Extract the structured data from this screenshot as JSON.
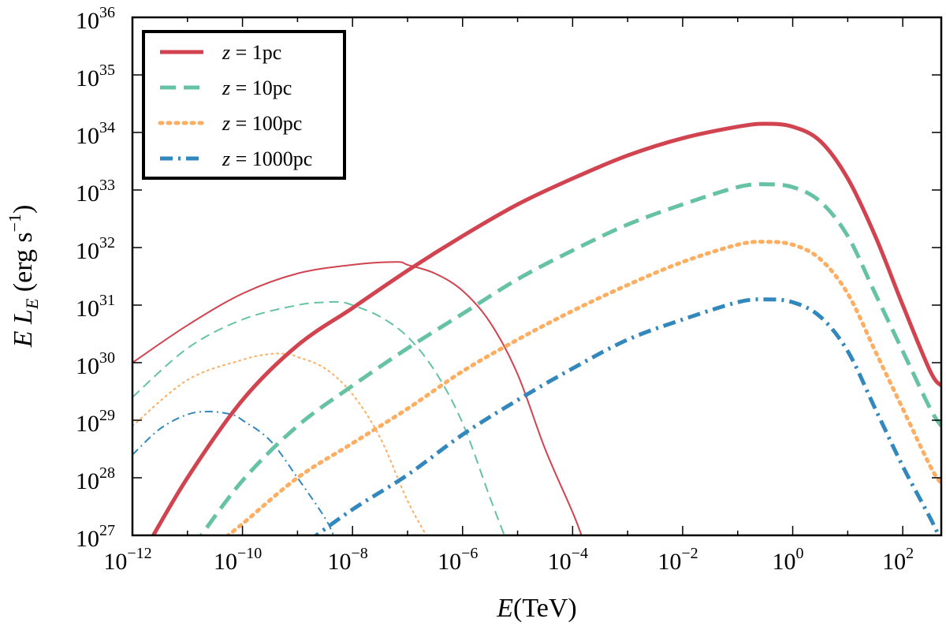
{
  "chart_data": {
    "type": "line",
    "title": "",
    "xlabel": "E(TeV)",
    "ylabel": "E L_E (erg s^-1)",
    "xscale": "log",
    "yscale": "log",
    "xlim_log10": [
      -12,
      2.7
    ],
    "ylim_log10": [
      27,
      36
    ],
    "x_ticks": [
      {
        "base": "10",
        "exp": "-12",
        "log10": -12
      },
      {
        "base": "10",
        "exp": "-10",
        "log10": -10
      },
      {
        "base": "10",
        "exp": "-8",
        "log10": -8
      },
      {
        "base": "10",
        "exp": "-6",
        "log10": -6
      },
      {
        "base": "10",
        "exp": "-4",
        "log10": -4
      },
      {
        "base": "10",
        "exp": "-2",
        "log10": -2
      },
      {
        "base": "10",
        "exp": "0",
        "log10": 0
      },
      {
        "base": "10",
        "exp": "2",
        "log10": 2
      }
    ],
    "y_ticks": [
      {
        "base": "10",
        "exp": "27",
        "log10": 27
      },
      {
        "base": "10",
        "exp": "28",
        "log10": 28
      },
      {
        "base": "10",
        "exp": "29",
        "log10": 29
      },
      {
        "base": "10",
        "exp": "30",
        "log10": 30
      },
      {
        "base": "10",
        "exp": "31",
        "log10": 31
      },
      {
        "base": "10",
        "exp": "32",
        "log10": 32
      },
      {
        "base": "10",
        "exp": "33",
        "log10": 33
      },
      {
        "base": "10",
        "exp": "34",
        "log10": 34
      },
      {
        "base": "10",
        "exp": "35",
        "log10": 35
      },
      {
        "base": "10",
        "exp": "36",
        "log10": 36
      }
    ],
    "grid": false,
    "legend_position": "top-left",
    "legend": [
      {
        "label_prefix": "z",
        "label_eq": " = ",
        "label_value": "1pc",
        "color": "#d1434f",
        "style": "solid"
      },
      {
        "label_prefix": "z",
        "label_eq": " = ",
        "label_value": "10pc",
        "color": "#66c2a5",
        "style": "dashed"
      },
      {
        "label_prefix": "z",
        "label_eq": " = ",
        "label_value": "100pc",
        "color": "#fdae61",
        "style": "dotted"
      },
      {
        "label_prefix": "z",
        "label_eq": " = ",
        "label_value": "1000pc",
        "color": "#3288bd",
        "style": "dashdot"
      }
    ],
    "series": [
      {
        "name": "z = 1pc",
        "component": "thick",
        "color": "#d1434f",
        "style": "solid",
        "log10_x": [
          -11.8,
          -11,
          -10,
          -9,
          -8,
          -7,
          -6,
          -5,
          -4,
          -3,
          -2,
          -1,
          -0.5,
          0,
          0.5,
          1,
          1.5,
          2,
          2.5,
          2.7
        ],
        "log10_y": [
          26.7,
          28.0,
          29.35,
          30.3,
          30.95,
          31.6,
          32.2,
          32.75,
          33.2,
          33.6,
          33.9,
          34.1,
          34.15,
          34.1,
          33.85,
          33.2,
          32.2,
          31.0,
          29.85,
          29.6
        ]
      },
      {
        "name": "z = 10pc",
        "component": "thick",
        "color": "#66c2a5",
        "style": "dashed",
        "log10_x": [
          -10.9,
          -10,
          -9,
          -8,
          -7,
          -6,
          -5,
          -4,
          -3,
          -2,
          -1,
          -0.5,
          0,
          0.5,
          1,
          1.5,
          2,
          2.5,
          2.7
        ],
        "log10_y": [
          26.8,
          27.95,
          28.9,
          29.6,
          30.25,
          30.85,
          31.45,
          31.95,
          32.4,
          32.75,
          33.05,
          33.1,
          33.05,
          32.8,
          32.2,
          31.2,
          30.2,
          29.2,
          28.9
        ]
      },
      {
        "name": "z = 100pc",
        "component": "thick",
        "color": "#fdae61",
        "style": "dotted",
        "log10_x": [
          -10.4,
          -10,
          -9,
          -8,
          -7,
          -6,
          -5,
          -4,
          -3,
          -2,
          -1,
          -0.5,
          0,
          0.5,
          1,
          1.5,
          2,
          2.5,
          2.7
        ],
        "log10_y": [
          26.9,
          27.2,
          28.0,
          28.6,
          29.2,
          29.85,
          30.4,
          30.9,
          31.35,
          31.75,
          32.05,
          32.1,
          32.05,
          31.8,
          31.2,
          30.2,
          29.2,
          28.2,
          27.9
        ]
      },
      {
        "name": "z = 1000pc",
        "component": "thick",
        "color": "#3288bd",
        "style": "dashdot",
        "log10_x": [
          -8.8,
          -8,
          -7,
          -6,
          -5,
          -4,
          -3,
          -2,
          -1,
          -0.5,
          0,
          0.5,
          1,
          1.5,
          2,
          2.5,
          2.7
        ],
        "log10_y": [
          26.9,
          27.45,
          28.05,
          28.75,
          29.35,
          29.9,
          30.4,
          30.75,
          31.05,
          31.1,
          31.05,
          30.8,
          30.2,
          29.2,
          28.2,
          27.3,
          26.9
        ]
      },
      {
        "name": "z = 1pc",
        "component": "thin",
        "color": "#d1434f",
        "style": "solid",
        "log10_x": [
          -12,
          -11,
          -10,
          -9,
          -8,
          -7.2,
          -7,
          -6.5,
          -6,
          -5.5,
          -5,
          -4.5,
          -4,
          -3.8
        ],
        "log10_y": [
          30.0,
          30.65,
          31.2,
          31.55,
          31.7,
          31.75,
          31.7,
          31.55,
          31.25,
          30.7,
          29.8,
          28.5,
          27.4,
          26.9
        ]
      },
      {
        "name": "z = 10pc",
        "component": "thin",
        "color": "#66c2a5",
        "style": "dashed",
        "log10_x": [
          -12,
          -11,
          -10,
          -9,
          -8.5,
          -8.2,
          -8,
          -7.5,
          -7,
          -6.5,
          -6,
          -5.5,
          -5.2
        ],
        "log10_y": [
          29.4,
          30.25,
          30.75,
          31.0,
          31.05,
          31.05,
          31.0,
          30.8,
          30.45,
          29.85,
          28.95,
          27.65,
          26.9
        ]
      },
      {
        "name": "z = 100pc",
        "component": "thin",
        "color": "#fdae61",
        "style": "dotted",
        "log10_x": [
          -12,
          -11,
          -10,
          -9.5,
          -9.2,
          -9,
          -8.5,
          -8,
          -7.5,
          -7,
          -6.6
        ],
        "log10_y": [
          28.9,
          29.7,
          30.05,
          30.15,
          30.15,
          30.1,
          29.9,
          29.45,
          28.7,
          27.6,
          26.9
        ]
      },
      {
        "name": "z = 1000pc",
        "component": "thin",
        "color": "#3288bd",
        "style": "dashdot",
        "log10_x": [
          -12,
          -11.5,
          -11,
          -10.6,
          -10.2,
          -10,
          -9.5,
          -9,
          -8.5,
          -8.3
        ],
        "log10_y": [
          28.4,
          28.85,
          29.1,
          29.15,
          29.1,
          29.0,
          28.65,
          28.0,
          27.3,
          26.9
        ]
      }
    ]
  }
}
